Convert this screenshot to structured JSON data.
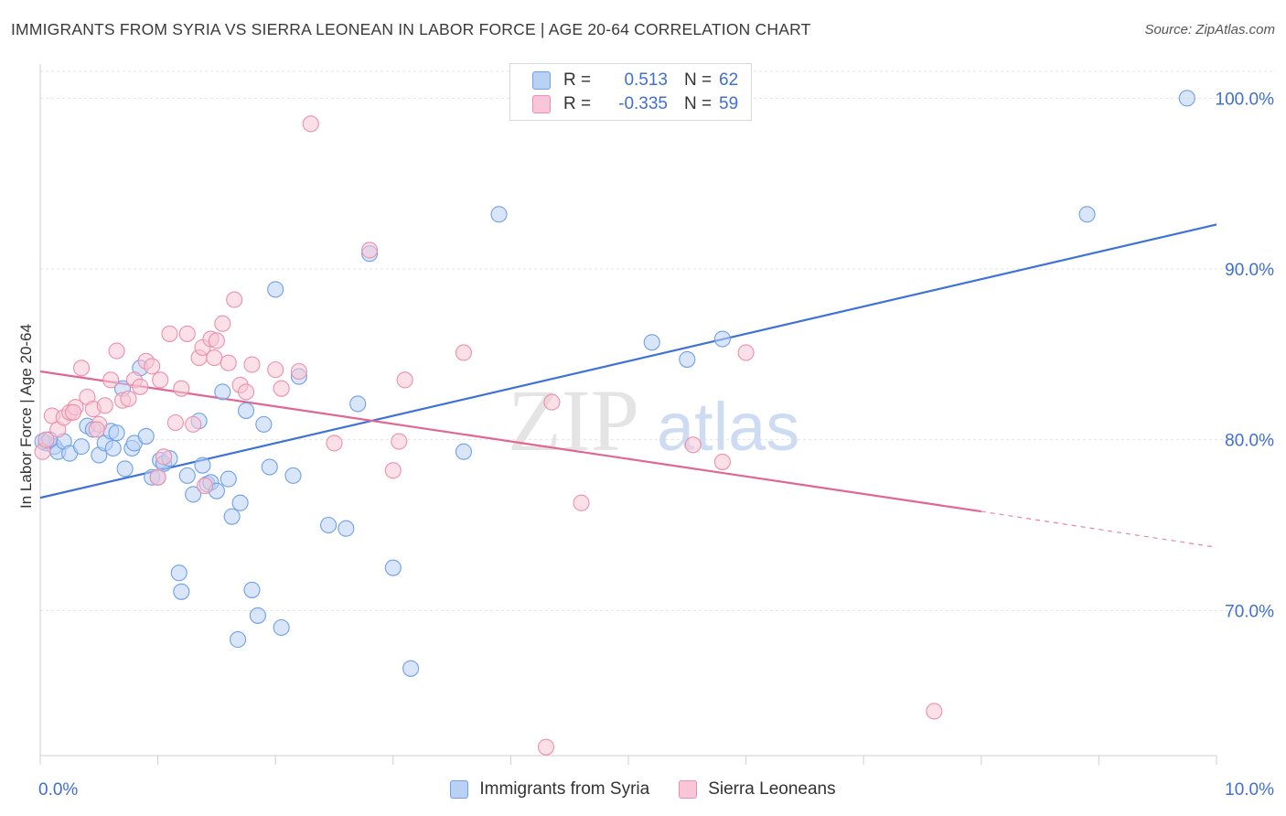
{
  "header": {
    "title": "IMMIGRANTS FROM SYRIA VS SIERRA LEONEAN IN LABOR FORCE | AGE 20-64 CORRELATION CHART",
    "source": "Source: ZipAtlas.com"
  },
  "legend": {
    "rows": [
      {
        "r_label": "R =",
        "r_value": "0.513",
        "n_label": "N =",
        "n_value": "62",
        "color": "#6f9fe8",
        "fill": "#b9d1f5"
      },
      {
        "r_label": "R =",
        "r_value": "-0.335",
        "n_label": "N =",
        "n_value": "59",
        "color": "#ec8fac",
        "fill": "#f8c6d6"
      }
    ]
  },
  "watermark": {
    "zip": "ZIP",
    "atlas": "atlas"
  },
  "chart_data": {
    "type": "scatter",
    "xlabel": "",
    "ylabel": "In Labor Force | Age 20-64",
    "xlim": [
      0,
      10
    ],
    "ylim": [
      61.5,
      102
    ],
    "x_tick_labels": [
      "0.0%",
      "10.0%"
    ],
    "y_ticks": [
      70,
      80,
      90,
      100
    ],
    "y_tick_labels": [
      "70.0%",
      "80.0%",
      "90.0%",
      "100.0%"
    ],
    "grid": true,
    "series": [
      {
        "name": "Immigrants from Syria",
        "color": "#3f72d6",
        "fill": "#b9d1f5",
        "stroke": "#6f9fe8",
        "trend": {
          "x0": 0,
          "y0": 76.6,
          "x1": 10,
          "y1": 92.6
        },
        "points": [
          [
            0.05,
            79.8
          ],
          [
            0.12,
            79.6
          ],
          [
            0.15,
            79.3
          ],
          [
            0.2,
            79.9
          ],
          [
            0.25,
            79.2
          ],
          [
            0.35,
            79.6
          ],
          [
            0.4,
            80.8
          ],
          [
            0.45,
            80.6
          ],
          [
            0.5,
            79.1
          ],
          [
            0.55,
            79.8
          ],
          [
            0.6,
            80.5
          ],
          [
            0.62,
            79.5
          ],
          [
            0.65,
            80.4
          ],
          [
            0.7,
            83.0
          ],
          [
            0.72,
            78.3
          ],
          [
            0.78,
            79.5
          ],
          [
            0.8,
            79.8
          ],
          [
            0.85,
            84.2
          ],
          [
            0.9,
            80.2
          ],
          [
            0.95,
            77.8
          ],
          [
            1.0,
            77.8
          ],
          [
            1.02,
            78.8
          ],
          [
            1.05,
            78.6
          ],
          [
            1.1,
            78.9
          ],
          [
            1.18,
            72.2
          ],
          [
            1.2,
            71.1
          ],
          [
            1.25,
            77.9
          ],
          [
            1.3,
            76.8
          ],
          [
            1.35,
            81.1
          ],
          [
            1.38,
            78.5
          ],
          [
            1.42,
            77.4
          ],
          [
            1.45,
            77.5
          ],
          [
            1.5,
            77.0
          ],
          [
            1.55,
            82.8
          ],
          [
            1.6,
            77.7
          ],
          [
            1.63,
            75.5
          ],
          [
            1.68,
            68.3
          ],
          [
            1.7,
            76.3
          ],
          [
            1.75,
            81.7
          ],
          [
            1.8,
            71.2
          ],
          [
            1.85,
            69.7
          ],
          [
            1.9,
            80.9
          ],
          [
            1.95,
            78.4
          ],
          [
            2.0,
            88.8
          ],
          [
            2.05,
            69.0
          ],
          [
            2.15,
            77.9
          ],
          [
            2.2,
            83.7
          ],
          [
            2.45,
            75.0
          ],
          [
            2.6,
            74.8
          ],
          [
            2.7,
            82.1
          ],
          [
            2.8,
            90.9
          ],
          [
            3.0,
            72.5
          ],
          [
            3.15,
            66.6
          ],
          [
            3.6,
            79.3
          ],
          [
            3.9,
            93.2
          ],
          [
            5.2,
            85.7
          ],
          [
            5.5,
            84.7
          ],
          [
            5.8,
            85.9
          ],
          [
            8.9,
            93.2
          ],
          [
            9.75,
            100.0
          ],
          [
            0.02,
            79.9
          ],
          [
            0.08,
            80.0
          ]
        ]
      },
      {
        "name": "Sierra Leoneans",
        "color": "#e06693",
        "fill": "#f8c6d6",
        "stroke": "#ec8fac",
        "trend": {
          "x0": 0,
          "y0": 84.0,
          "x1": 8.0,
          "y1": 75.8
        },
        "trend_dashed": {
          "x0": 8.0,
          "y0": 75.8,
          "x1": 10,
          "y1": 73.7
        },
        "points": [
          [
            0.02,
            79.3
          ],
          [
            0.05,
            80.0
          ],
          [
            0.1,
            81.4
          ],
          [
            0.15,
            80.6
          ],
          [
            0.2,
            81.3
          ],
          [
            0.25,
            81.6
          ],
          [
            0.3,
            81.9
          ],
          [
            0.35,
            84.2
          ],
          [
            0.4,
            82.5
          ],
          [
            0.45,
            81.8
          ],
          [
            0.5,
            80.9
          ],
          [
            0.55,
            82.0
          ],
          [
            0.6,
            83.5
          ],
          [
            0.65,
            85.2
          ],
          [
            0.7,
            82.3
          ],
          [
            0.75,
            82.4
          ],
          [
            0.8,
            83.5
          ],
          [
            0.85,
            83.1
          ],
          [
            0.9,
            84.6
          ],
          [
            0.95,
            84.3
          ],
          [
            1.0,
            77.8
          ],
          [
            1.02,
            83.5
          ],
          [
            1.05,
            79.0
          ],
          [
            1.1,
            86.2
          ],
          [
            1.15,
            81.0
          ],
          [
            1.2,
            83.0
          ],
          [
            1.25,
            86.2
          ],
          [
            1.3,
            80.9
          ],
          [
            1.35,
            84.8
          ],
          [
            1.38,
            85.4
          ],
          [
            1.4,
            77.3
          ],
          [
            1.45,
            85.9
          ],
          [
            1.48,
            84.8
          ],
          [
            1.5,
            85.8
          ],
          [
            1.55,
            86.8
          ],
          [
            1.6,
            84.5
          ],
          [
            1.65,
            88.2
          ],
          [
            1.7,
            83.2
          ],
          [
            1.75,
            82.8
          ],
          [
            1.8,
            84.4
          ],
          [
            2.0,
            84.1
          ],
          [
            2.05,
            83.0
          ],
          [
            2.2,
            84.0
          ],
          [
            2.3,
            98.5
          ],
          [
            2.5,
            79.8
          ],
          [
            2.8,
            91.1
          ],
          [
            3.0,
            78.2
          ],
          [
            3.05,
            79.9
          ],
          [
            3.1,
            83.5
          ],
          [
            3.6,
            85.1
          ],
          [
            4.3,
            62.0
          ],
          [
            4.35,
            82.2
          ],
          [
            4.6,
            76.3
          ],
          [
            5.55,
            79.7
          ],
          [
            5.8,
            78.7
          ],
          [
            6.0,
            85.1
          ],
          [
            7.6,
            64.1
          ],
          [
            0.28,
            81.6
          ],
          [
            0.48,
            80.6
          ]
        ]
      }
    ]
  },
  "bottom_legend": {
    "items": [
      {
        "label": "Immigrants from Syria",
        "fill": "#b9d1f5",
        "stroke": "#6f9fe8"
      },
      {
        "label": "Sierra Leoneans",
        "fill": "#f8c6d6",
        "stroke": "#ec8fac"
      }
    ]
  }
}
